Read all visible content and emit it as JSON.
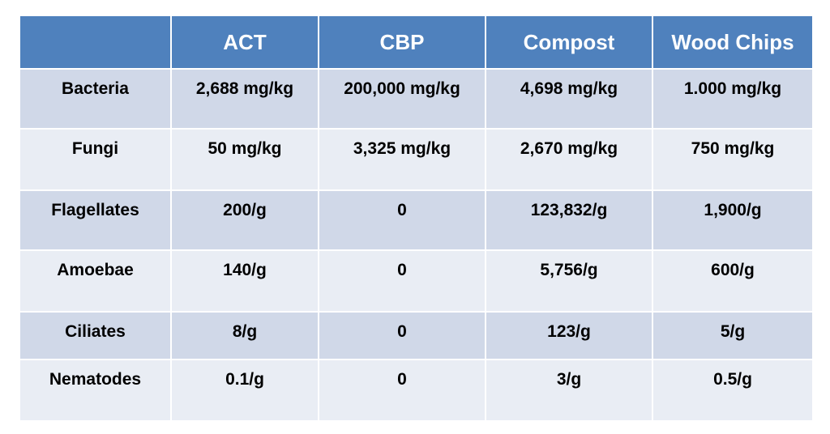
{
  "table": {
    "headers": [
      "",
      "ACT",
      "CBP",
      "Compost",
      "Wood Chips"
    ],
    "rows": [
      {
        "label": "Bacteria",
        "values": [
          "2,688 mg/kg",
          "200,000 mg/kg",
          "4,698 mg/kg",
          "1.000 mg/kg"
        ]
      },
      {
        "label": "Fungi",
        "values": [
          "50 mg/kg",
          "3,325 mg/kg",
          "2,670 mg/kg",
          "750 mg/kg"
        ]
      },
      {
        "label": "Flagellates",
        "values": [
          "200/g",
          "0",
          "123,832/g",
          "1,900/g"
        ]
      },
      {
        "label": "Amoebae",
        "values": [
          "140/g",
          "0",
          "5,756/g",
          "600/g"
        ]
      },
      {
        "label": "Ciliates",
        "values": [
          "8/g",
          "0",
          "123/g",
          "5/g"
        ]
      },
      {
        "label": "Nematodes",
        "values": [
          "0.1/g",
          "0",
          "3/g",
          "0.5/g"
        ]
      }
    ]
  },
  "colors": {
    "header": "#4f81bd",
    "band": "#d0d8e8",
    "light": "#e9edf4"
  }
}
